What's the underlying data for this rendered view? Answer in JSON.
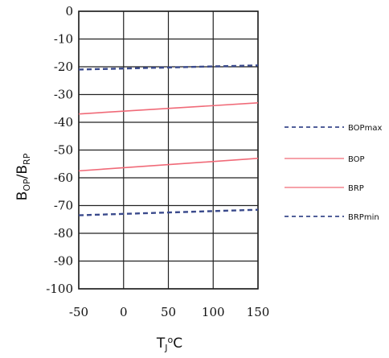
{
  "chart_data": {
    "type": "line",
    "xlabel": {
      "main": "T",
      "sub": "J",
      "sup": "o",
      "unit": "C"
    },
    "ylabel": {
      "b1": "B",
      "s1": "OP",
      "slash": "/",
      "b2": "B",
      "s2": "RP"
    },
    "xlim": [
      -50,
      150
    ],
    "ylim": [
      -100,
      0
    ],
    "x_ticks": [
      -50,
      0,
      50,
      100,
      150
    ],
    "y_ticks": [
      0,
      -10,
      -20,
      -30,
      -40,
      -50,
      -60,
      -70,
      -80,
      -90,
      -100
    ],
    "grid": true,
    "legend_position": "right",
    "series": [
      {
        "name": "BOPmax",
        "x": [
          -50,
          150
        ],
        "y": [
          -21,
          -19.5
        ],
        "color": "#3a4a8c",
        "dash": "dashed"
      },
      {
        "name": "BOP",
        "x": [
          -50,
          150
        ],
        "y": [
          -37,
          -33
        ],
        "color": "#f06a78",
        "dash": "solid"
      },
      {
        "name": "BRP",
        "x": [
          -50,
          150
        ],
        "y": [
          -57.5,
          -53
        ],
        "color": "#f06a78",
        "dash": "solid"
      },
      {
        "name": "BRPmin",
        "x": [
          -50,
          150
        ],
        "y": [
          -73.5,
          -71.5
        ],
        "color": "#3a4a8c",
        "dash": "dashed"
      }
    ]
  }
}
